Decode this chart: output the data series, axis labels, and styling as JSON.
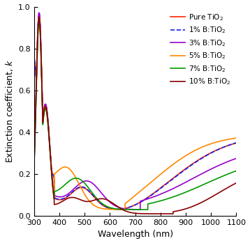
{
  "title": "",
  "xlabel": "Wavelength (nm)",
  "ylabel": "Extinction coefficient, $k$",
  "xlim": [
    300,
    1100
  ],
  "ylim": [
    0.0,
    1.0
  ],
  "xticks": [
    300,
    400,
    500,
    600,
    700,
    800,
    900,
    1000,
    1100
  ],
  "yticks": [
    0.0,
    0.2,
    0.4,
    0.6,
    0.8,
    1.0
  ],
  "series": [
    {
      "label": "Pure TiO$_2$",
      "color": "#ff2200",
      "linestyle": "-",
      "linewidth": 1.2,
      "key": "pure"
    },
    {
      "label": "1% B:TiO$_2$",
      "color": "#1122ee",
      "linestyle": "--",
      "linewidth": 1.2,
      "key": "b1"
    },
    {
      "label": "3% B:TiO$_2$",
      "color": "#9900cc",
      "linestyle": "-",
      "linewidth": 1.2,
      "key": "b3"
    },
    {
      "label": "5% B:TiO$_2$",
      "color": "#ff8800",
      "linestyle": "-",
      "linewidth": 1.2,
      "key": "b5"
    },
    {
      "label": "7% B:TiO$_2$",
      "color": "#009900",
      "linestyle": "-",
      "linewidth": 1.2,
      "key": "b7"
    },
    {
      "label": "10% B:TiO$_2$",
      "color": "#880000",
      "linestyle": "-",
      "linewidth": 1.2,
      "key": "b10"
    }
  ],
  "legend_fontsize": 7.5,
  "axis_fontsize": 9,
  "tick_fontsize": 8
}
